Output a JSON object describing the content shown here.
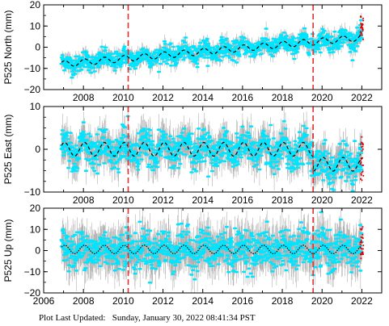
{
  "footer": {
    "prefix": "Plot Last Updated:",
    "timestamp": "Sunday, January 30, 2022 08:41:34 PST"
  },
  "colors": {
    "data_points": "#00e5ff",
    "error_bars": "#a9a9a9",
    "recent_points": "#e00000",
    "event_lines": "#e03030",
    "model_line": "#000000"
  },
  "event_years": [
    2010.25,
    2019.55
  ],
  "chart_data": [
    {
      "type": "scatter",
      "ylabel": "P525 North (mm)",
      "xlim": [
        2006,
        2023
      ],
      "ylim": [
        -20,
        20
      ],
      "yticks": [
        "20",
        "10",
        "0",
        "−10",
        "−20"
      ],
      "ytick_values": [
        20,
        10,
        0,
        -10,
        -20
      ],
      "xticks": [
        "2008",
        "2010",
        "2012",
        "2014",
        "2016",
        "2018",
        "2020",
        "2022"
      ],
      "xtick_values": [
        2008,
        2010,
        2012,
        2014,
        2016,
        2018,
        2020,
        2022
      ],
      "model": {
        "t0": 2006.9,
        "t1": 2022.0,
        "start": -8,
        "slope": 0.83,
        "seasonal_amp": 1.5,
        "offsets": [
          {
            "year": 2019.55,
            "dy": 0
          }
        ]
      },
      "scatter_sd": 2.2,
      "error_sd": 2.5,
      "grid": false
    },
    {
      "type": "scatter",
      "ylabel": "P525 East (mm)",
      "xlim": [
        2006,
        2023
      ],
      "ylim": [
        -10,
        10
      ],
      "yticks": [
        "10",
        "0",
        "−10"
      ],
      "ytick_values": [
        10,
        0,
        -10
      ],
      "xticks": [
        "2008",
        "2010",
        "2012",
        "2014",
        "2016",
        "2018",
        "2020",
        "2022"
      ],
      "xtick_values": [
        2008,
        2010,
        2012,
        2014,
        2016,
        2018,
        2020,
        2022
      ],
      "model": {
        "t0": 2006.9,
        "t1": 2022.0,
        "start": 0,
        "slope": 0,
        "seasonal_amp": 1.6,
        "offsets": [
          {
            "year": 2019.55,
            "dy": -3.5
          }
        ]
      },
      "scatter_sd": 2.0,
      "error_sd": 2.8,
      "grid": false
    },
    {
      "type": "scatter",
      "ylabel": "P525 Up (mm)",
      "xlim": [
        2006,
        2023
      ],
      "ylim": [
        -20,
        20
      ],
      "yticks": [
        "20",
        "10",
        "0",
        "−10",
        "−20"
      ],
      "ytick_values": [
        20,
        10,
        0,
        -10,
        -20
      ],
      "xticks": [
        "2006",
        "2008",
        "2010",
        "2012",
        "2014",
        "2016",
        "2018",
        "2020",
        "2022"
      ],
      "xtick_values": [
        2006,
        2008,
        2010,
        2012,
        2014,
        2016,
        2018,
        2020,
        2022
      ],
      "model": {
        "t0": 2006.9,
        "t1": 2022.0,
        "start": 0.5,
        "slope": 0,
        "seasonal_amp": 2.0,
        "offsets": [
          {
            "year": 2019.55,
            "dy": 0
          }
        ]
      },
      "scatter_sd": 4.5,
      "error_sd": 7.0,
      "grid": false
    }
  ]
}
